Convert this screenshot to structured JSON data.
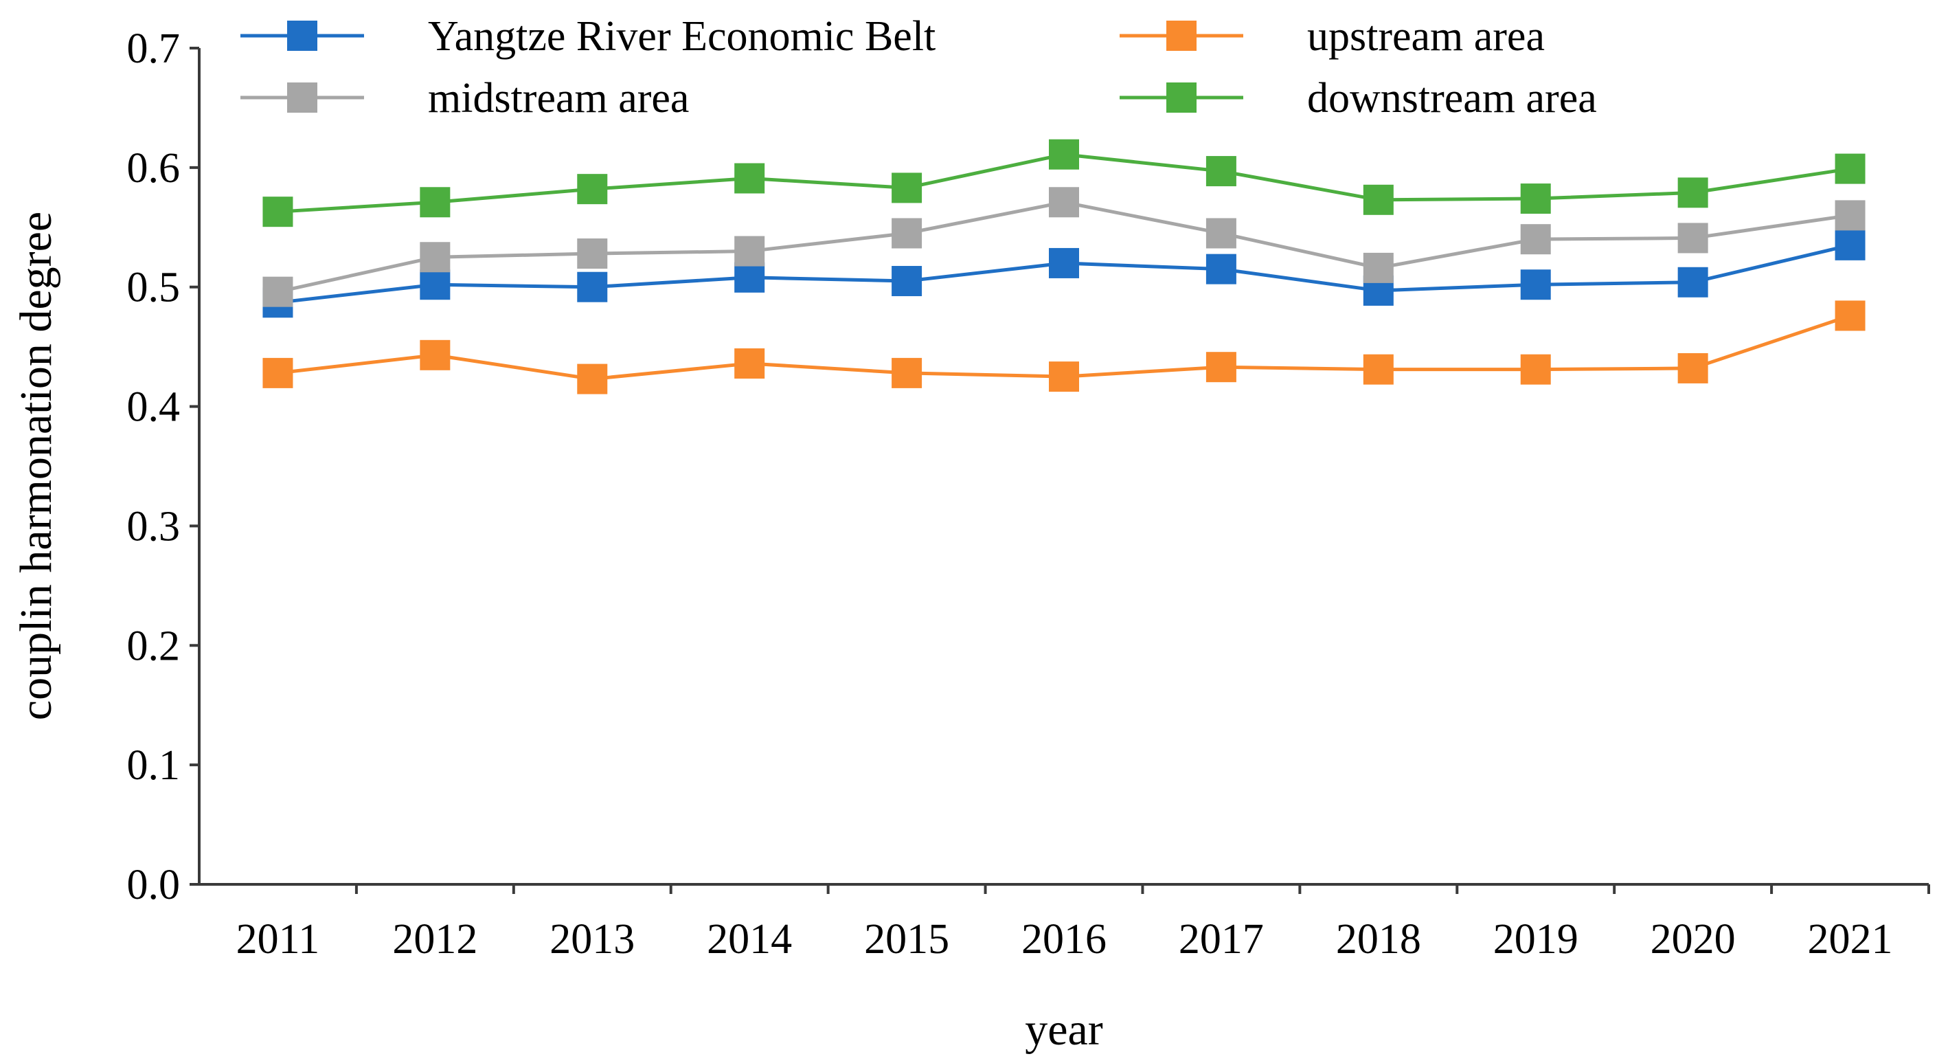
{
  "chart_data": {
    "type": "line",
    "title": "",
    "xlabel": "year",
    "ylabel": "couplin harmonation degree",
    "categories": [
      "2011",
      "2012",
      "2013",
      "2014",
      "2015",
      "2016",
      "2017",
      "2018",
      "2019",
      "2020",
      "2021"
    ],
    "ylim": [
      0.0,
      0.7
    ],
    "yticks": [
      "0.0",
      "0.1",
      "0.2",
      "0.3",
      "0.4",
      "0.5",
      "0.6",
      "0.7"
    ],
    "grid": false,
    "legend_position": "top",
    "series": [
      {
        "name": "Yangtze River Economic Belt",
        "color": "#1f6fc5",
        "marker": "square",
        "values": [
          0.487,
          0.502,
          0.5,
          0.508,
          0.505,
          0.52,
          0.515,
          0.497,
          0.502,
          0.504,
          0.535
        ]
      },
      {
        "name": "upstream area",
        "color": "#f98a2d",
        "marker": "square",
        "values": [
          0.428,
          0.443,
          0.423,
          0.436,
          0.428,
          0.425,
          0.433,
          0.431,
          0.431,
          0.432,
          0.476
        ]
      },
      {
        "name": "midstream area",
        "color": "#a6a6a6",
        "marker": "square",
        "values": [
          0.496,
          0.525,
          0.528,
          0.53,
          0.545,
          0.571,
          0.545,
          0.516,
          0.54,
          0.541,
          0.56
        ]
      },
      {
        "name": "downstream area",
        "color": "#4cae3f",
        "marker": "square",
        "values": [
          0.563,
          0.571,
          0.582,
          0.591,
          0.583,
          0.611,
          0.597,
          0.573,
          0.574,
          0.579,
          0.599
        ]
      }
    ]
  }
}
